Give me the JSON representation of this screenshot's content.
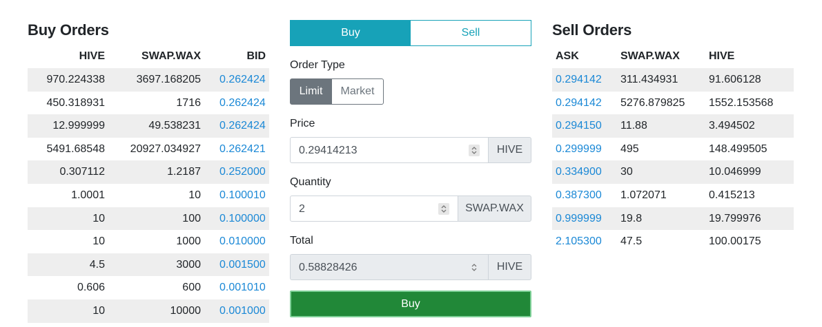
{
  "buy_orders": {
    "title": "Buy Orders",
    "columns": [
      "HIVE",
      "SWAP.WAX",
      "BID"
    ],
    "rows": [
      [
        "970.224338",
        "3697.168205",
        "0.262424"
      ],
      [
        "450.318931",
        "1716",
        "0.262424"
      ],
      [
        "12.999999",
        "49.538231",
        "0.262424"
      ],
      [
        "5491.68548",
        "20927.034927",
        "0.262421"
      ],
      [
        "0.307112",
        "1.2187",
        "0.252000"
      ],
      [
        "1.0001",
        "10",
        "0.100010"
      ],
      [
        "10",
        "100",
        "0.100000"
      ],
      [
        "10",
        "1000",
        "0.010000"
      ],
      [
        "4.5",
        "3000",
        "0.001500"
      ],
      [
        "0.606",
        "600",
        "0.001010"
      ],
      [
        "10",
        "10000",
        "0.001000"
      ]
    ]
  },
  "sell_orders": {
    "title": "Sell Orders",
    "columns": [
      "ASK",
      "SWAP.WAX",
      "HIVE"
    ],
    "rows": [
      [
        "0.294142",
        "311.434931",
        "91.606128"
      ],
      [
        "0.294142",
        "5276.879825",
        "1552.153568"
      ],
      [
        "0.294150",
        "11.88",
        "3.494502"
      ],
      [
        "0.299999",
        "495",
        "148.499505"
      ],
      [
        "0.334900",
        "30",
        "10.046999"
      ],
      [
        "0.387300",
        "1.072071",
        "0.415213"
      ],
      [
        "0.999999",
        "19.8",
        "19.799976"
      ],
      [
        "2.105300",
        "47.5",
        "100.00175"
      ]
    ]
  },
  "trade_form": {
    "tabs": {
      "buy": "Buy",
      "sell": "Sell",
      "active": "buy"
    },
    "order_type": {
      "label": "Order Type",
      "limit": "Limit",
      "market": "Market",
      "selected": "limit"
    },
    "price": {
      "label": "Price",
      "value": "0.29414213",
      "unit": "HIVE"
    },
    "quantity": {
      "label": "Quantity",
      "value": "2",
      "unit": "SWAP.WAX"
    },
    "total": {
      "label": "Total",
      "value": "0.58828426",
      "unit": "HIVE"
    },
    "submit_label": "Buy"
  },
  "colors": {
    "tab_active": "#17a2b8",
    "bid_ask_link": "#1a88d6",
    "submit": "#218838",
    "limit_active": "#6c757d"
  }
}
